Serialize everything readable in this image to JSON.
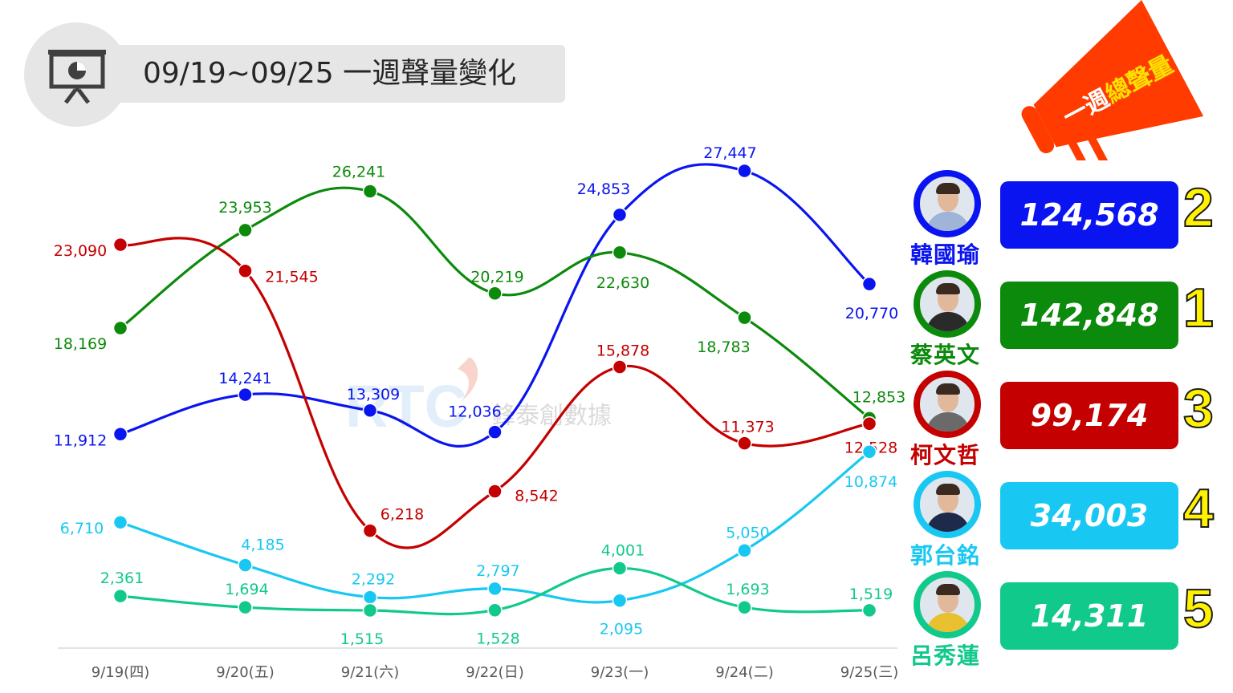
{
  "title": "09/19~09/25 一週聲量變化",
  "megaphone_text": {
    "prefix": "一週",
    "highlight": "總聲量"
  },
  "watermark": {
    "logo": "RTC",
    "text": "鋒泰創數據"
  },
  "colors": {
    "blue": "#0a14f0",
    "green": "#0b8a0b",
    "red": "#c40000",
    "cyan": "#19c8f2",
    "teal": "#12c98c",
    "rank": "#fff200",
    "megaphone": "#ff3b00"
  },
  "chart_data": {
    "type": "line",
    "x": [
      "9/19(四)",
      "9/20(五)",
      "9/21(六)",
      "9/22(日)",
      "9/23(一)",
      "9/24(二)",
      "9/25(三)"
    ],
    "series": [
      {
        "name": "韓國瑜",
        "color": "#0a14f0",
        "values": [
          11912,
          14241,
          13309,
          12036,
          24853,
          27447,
          20770
        ],
        "labels": [
          "11,912",
          "14,241",
          "13,309",
          "12,036",
          "24,853",
          "27,447",
          "20,770"
        ]
      },
      {
        "name": "蔡英文",
        "color": "#0b8a0b",
        "values": [
          18169,
          23953,
          26241,
          20219,
          22630,
          18783,
          12853
        ],
        "labels": [
          "18,169",
          "23,953",
          "26,241",
          "20,219",
          "22,630",
          "18,783",
          "12,853"
        ]
      },
      {
        "name": "柯文哲",
        "color": "#c40000",
        "values": [
          23090,
          21545,
          6218,
          8542,
          15878,
          11373,
          12528
        ],
        "labels": [
          "23,090",
          "21,545",
          "6,218",
          "8,542",
          "15,878",
          "11,373",
          "12,528"
        ]
      },
      {
        "name": "郭台銘",
        "color": "#19c8f2",
        "values": [
          6710,
          4185,
          2292,
          2797,
          2095,
          5050,
          10874
        ],
        "labels": [
          "6,710",
          "4,185",
          "2,292",
          "2,797",
          "2,095",
          "5,050",
          "10,874"
        ]
      },
      {
        "name": "呂秀蓮",
        "color": "#12c98c",
        "values": [
          2361,
          1694,
          1515,
          1528,
          4001,
          1693,
          1519
        ],
        "labels": [
          "2,361",
          "1,694",
          "1,515",
          "1,528",
          "4,001",
          "1,693",
          "1,519"
        ]
      }
    ],
    "ylim": [
      0,
      30000
    ],
    "grid": false,
    "xlabel": "",
    "ylabel": ""
  },
  "candidates": [
    {
      "name": "韓國瑜",
      "total": "124,568",
      "rank": "2",
      "color": "#0a14f0",
      "shirt": "#9fb4d6"
    },
    {
      "name": "蔡英文",
      "total": "142,848",
      "rank": "1",
      "color": "#0b8a0b",
      "shirt": "#2a2a2a"
    },
    {
      "name": "柯文哲",
      "total": "99,174",
      "rank": "3",
      "color": "#c40000",
      "shirt": "#6a6a6a"
    },
    {
      "name": "郭台銘",
      "total": "34,003",
      "rank": "4",
      "color": "#19c8f2",
      "shirt": "#1e2a4a"
    },
    {
      "name": "呂秀蓮",
      "total": "14,311",
      "rank": "5",
      "color": "#12c98c",
      "shirt": "#e8c030"
    }
  ]
}
